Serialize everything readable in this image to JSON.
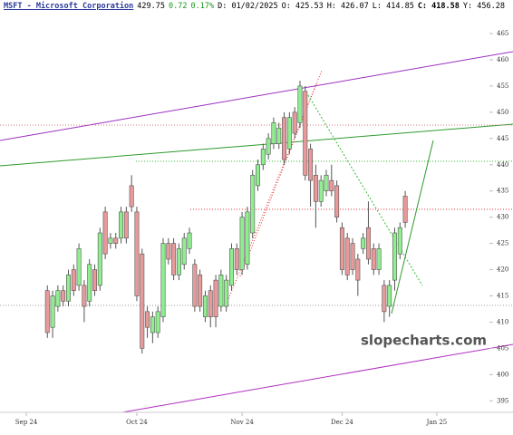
{
  "header": {
    "symbol": "MSFT - Microsoft Corporation",
    "last": "429.75",
    "change": "0.72",
    "change_pct": "0.17%",
    "date": "D: 01/02/2025",
    "open": "O: 425.53",
    "high": "H: 426.07",
    "low": "L: 414.85",
    "close": "C: 418.58",
    "prev": "Y: 456.28"
  },
  "watermark": "slopecharts.com",
  "chart_data": {
    "type": "candlestick",
    "open": [
      416,
      409,
      413,
      416,
      414,
      420,
      417,
      417,
      414,
      420,
      417,
      431,
      425,
      426,
      426,
      431,
      436,
      431,
      423,
      412,
      408,
      408,
      411,
      425,
      425,
      419,
      421,
      424,
      421,
      419,
      411,
      416,
      418,
      413,
      413,
      417,
      424,
      420,
      421,
      427,
      436,
      440,
      442,
      444,
      444,
      449,
      443,
      450,
      448,
      454,
      443,
      438,
      433,
      435,
      437,
      436,
      428,
      426,
      425,
      422,
      424,
      428,
      424,
      420,
      417,
      413,
      418,
      423,
      434
    ],
    "high": [
      417,
      416,
      417,
      417,
      420,
      421,
      425,
      418,
      422,
      421,
      428,
      432,
      427,
      427,
      432,
      432,
      438,
      432,
      424,
      413,
      412,
      413,
      426,
      426,
      426,
      425,
      427,
      428,
      422,
      420,
      416,
      417,
      419,
      420,
      419,
      425,
      425,
      431,
      432,
      439,
      441,
      444,
      446,
      449,
      448,
      450,
      450,
      451,
      456,
      455,
      444,
      440,
      438,
      439,
      440,
      437,
      429,
      427,
      426,
      423,
      427,
      433,
      425,
      425,
      418,
      418,
      428,
      429,
      435
    ],
    "low": [
      407,
      407,
      412,
      413,
      413,
      415,
      416,
      410,
      413,
      415,
      416,
      422,
      424,
      424,
      425,
      425,
      431,
      414,
      404,
      407,
      406,
      407,
      410,
      421,
      418,
      418,
      420,
      423,
      412,
      412,
      410,
      409,
      409,
      412,
      412,
      416,
      419,
      419,
      420,
      426,
      435,
      439,
      441,
      443,
      443,
      440,
      442,
      445,
      447,
      437,
      432,
      428,
      432,
      434,
      434,
      429,
      419,
      418,
      419,
      415,
      423,
      421,
      419,
      419,
      410,
      411,
      416,
      422,
      428
    ],
    "close": [
      408,
      415,
      416,
      414,
      419,
      416,
      424,
      413,
      421,
      416,
      427,
      423,
      426,
      425,
      431,
      426,
      432,
      415,
      405,
      409,
      411,
      412,
      425,
      422,
      419,
      424,
      426,
      427,
      413,
      413,
      415,
      411,
      411,
      419,
      418,
      424,
      420,
      430,
      431,
      438,
      440,
      443,
      445,
      448,
      447,
      441,
      449,
      446,
      455,
      438,
      437,
      433,
      437,
      438,
      435,
      430,
      420,
      419,
      420,
      418,
      426,
      422,
      420,
      424,
      412,
      417,
      427,
      428,
      429
    ],
    "up_color": "#90ee90",
    "down_color": "#e89a9a",
    "ylim": [
      392.8,
      471.4
    ],
    "yticks": [
      395,
      400,
      405,
      410,
      415,
      420,
      425,
      430,
      435,
      440,
      445,
      450,
      455,
      460,
      465
    ],
    "xlim": [
      -9,
      84
    ],
    "xticks": [
      {
        "value": -4,
        "label": "Sep 24"
      },
      {
        "value": 17,
        "label": "Oct 24"
      },
      {
        "value": 37,
        "label": "Nov 24"
      },
      {
        "value": 56,
        "label": "Dec 24"
      },
      {
        "value": 74,
        "label": "Jan 25"
      }
    ]
  }
}
